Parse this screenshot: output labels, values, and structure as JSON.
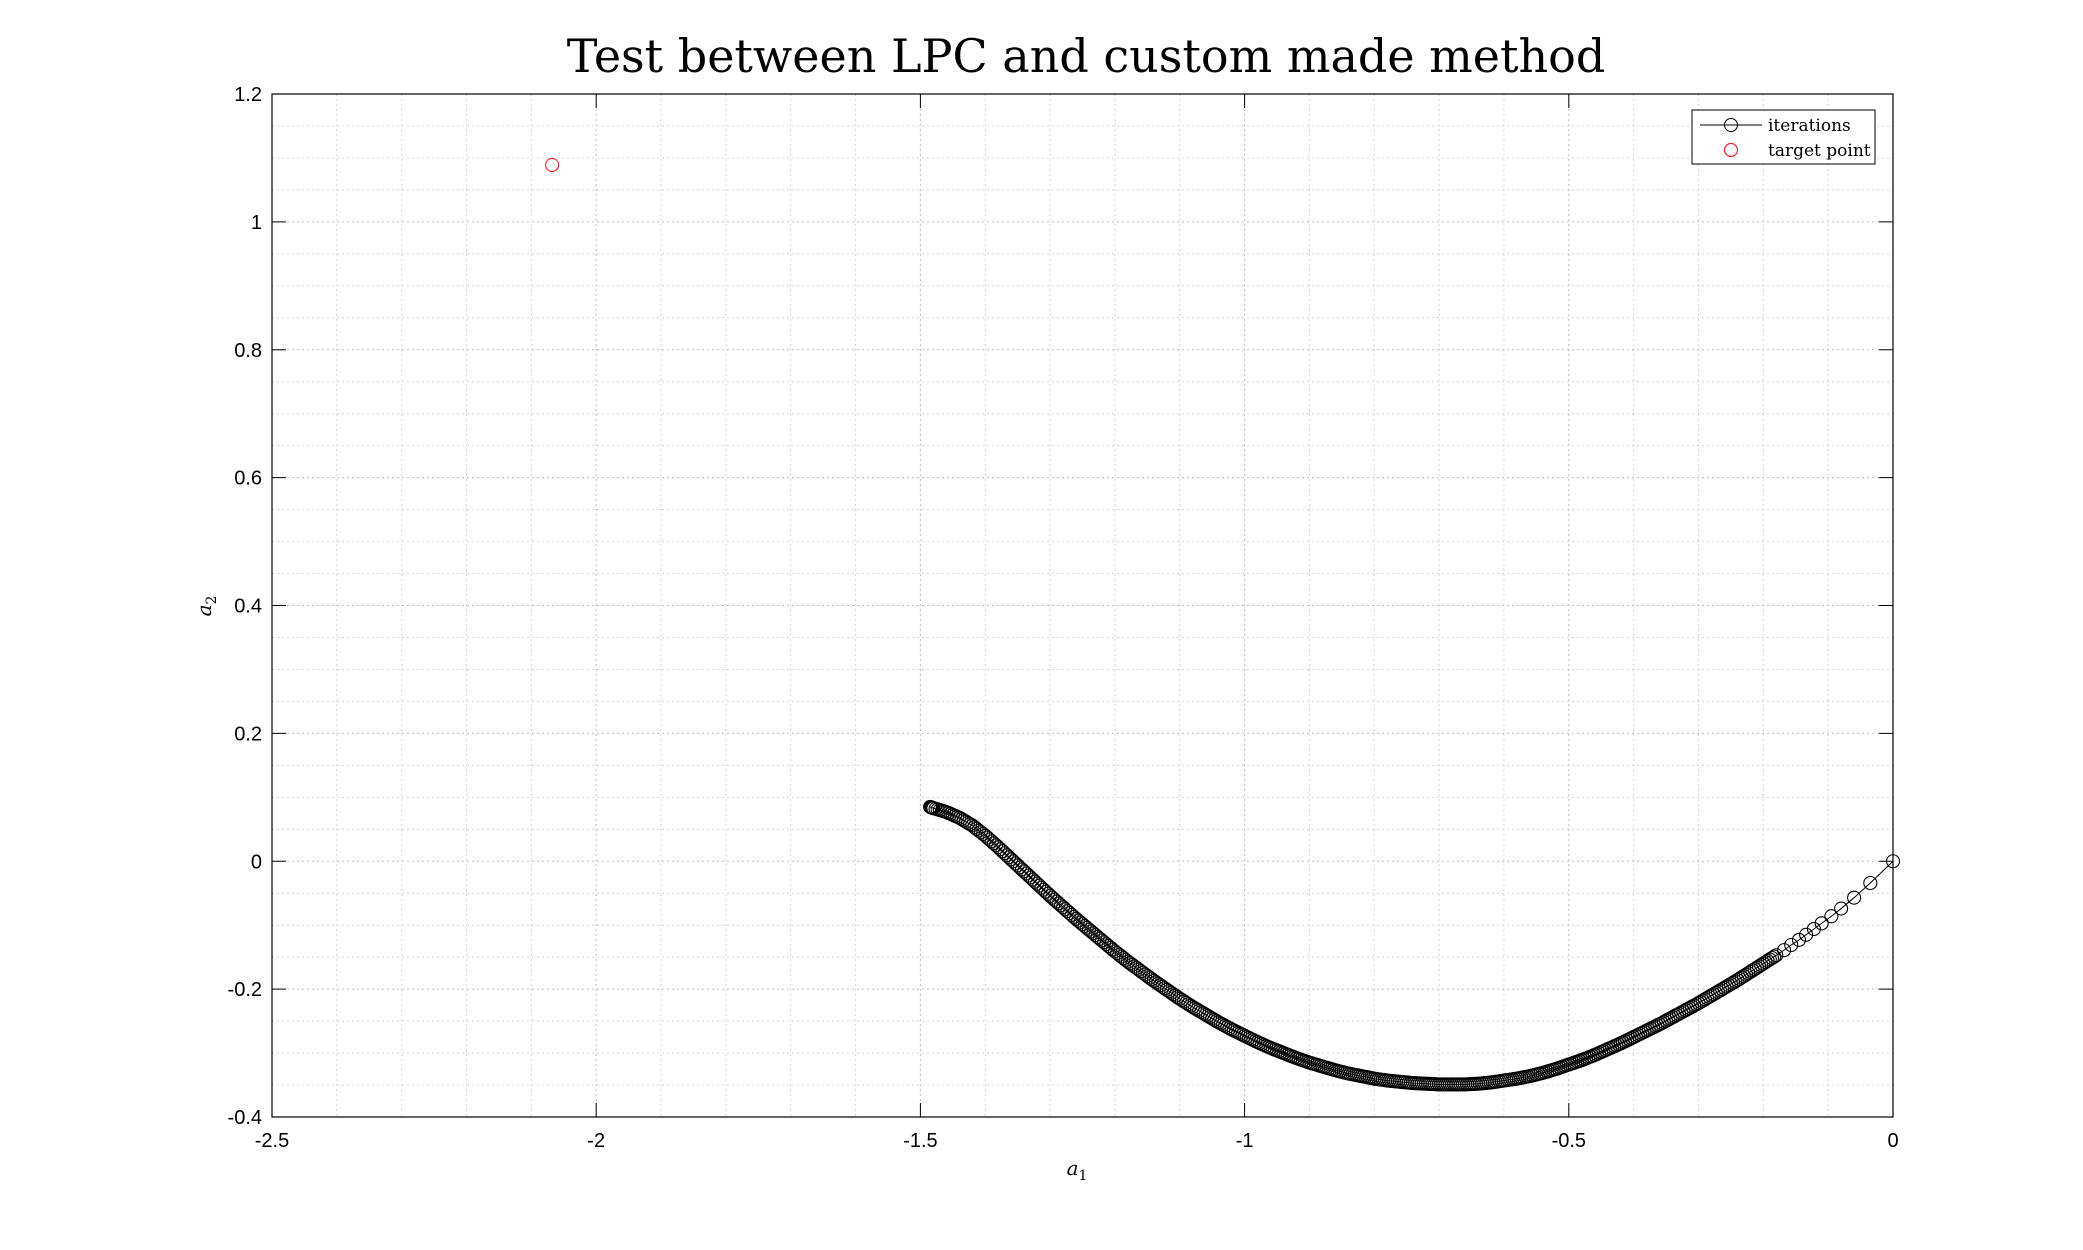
{
  "chart_data": {
    "type": "line",
    "title": "Test between LPC and custom made method",
    "xlabel": {
      "base": "a",
      "sub": "1"
    },
    "ylabel": {
      "base": "a",
      "sub": "2"
    },
    "xlim": [
      -2.5,
      0
    ],
    "ylim": [
      -0.4,
      1.2
    ],
    "xticks": [
      -2.5,
      -2,
      -1.5,
      -1,
      -0.5,
      0
    ],
    "xtick_labels": [
      "-2.5",
      "-2",
      "-1.5",
      "-1",
      "-0.5",
      "0"
    ],
    "yticks": [
      -0.4,
      -0.2,
      0,
      0.2,
      0.4,
      0.6,
      0.8,
      1,
      1.2
    ],
    "ytick_labels": [
      "-0.4",
      "-0.2",
      "0",
      "0.2",
      "0.4",
      "0.6",
      "0.8",
      "1",
      "1.2"
    ],
    "grid": true,
    "minor_grid": true,
    "legend_position": "top-right",
    "series": [
      {
        "name": "iterations",
        "marker": "circle",
        "line": true,
        "color": "#000000",
        "x": [
          0,
          -0.035,
          -0.06,
          -0.08,
          -0.095,
          -0.11,
          -0.122,
          -0.134,
          -0.145,
          -0.157,
          -0.168,
          -0.18,
          -0.2,
          -0.22,
          -0.24,
          -0.26,
          -0.28,
          -0.3,
          -0.32,
          -0.34,
          -0.36,
          -0.38,
          -0.4,
          -0.42,
          -0.44,
          -0.46,
          -0.48,
          -0.5,
          -0.52,
          -0.54,
          -0.56,
          -0.58,
          -0.6,
          -0.62,
          -0.64,
          -0.66,
          -0.68,
          -0.7,
          -0.72,
          -0.74,
          -0.76,
          -0.78,
          -0.8,
          -0.82,
          -0.84,
          -0.86,
          -0.88,
          -0.9,
          -0.92,
          -0.94,
          -0.96,
          -0.98,
          -1,
          -1.02,
          -1.04,
          -1.06,
          -1.08,
          -1.1,
          -1.12,
          -1.14,
          -1.16,
          -1.18,
          -1.2,
          -1.22,
          -1.24,
          -1.26,
          -1.28,
          -1.3,
          -1.32,
          -1.34,
          -1.36,
          -1.38,
          -1.4,
          -1.42,
          -1.44,
          -1.46,
          -1.48,
          -1.485
        ],
        "y": [
          0,
          -0.034,
          -0.057,
          -0.074,
          -0.086,
          -0.097,
          -0.106,
          -0.115,
          -0.123,
          -0.131,
          -0.139,
          -0.147,
          -0.16,
          -0.173,
          -0.186,
          -0.198,
          -0.21,
          -0.222,
          -0.233,
          -0.244,
          -0.255,
          -0.265,
          -0.275,
          -0.285,
          -0.294,
          -0.303,
          -0.311,
          -0.318,
          -0.325,
          -0.331,
          -0.336,
          -0.34,
          -0.343,
          -0.346,
          -0.348,
          -0.349,
          -0.349,
          -0.349,
          -0.348,
          -0.347,
          -0.345,
          -0.343,
          -0.34,
          -0.336,
          -0.332,
          -0.327,
          -0.321,
          -0.315,
          -0.308,
          -0.3,
          -0.292,
          -0.283,
          -0.273,
          -0.263,
          -0.252,
          -0.24,
          -0.228,
          -0.215,
          -0.201,
          -0.187,
          -0.172,
          -0.157,
          -0.141,
          -0.124,
          -0.107,
          -0.09,
          -0.072,
          -0.054,
          -0.035,
          -0.016,
          0.003,
          0.022,
          0.04,
          0.056,
          0.068,
          0.077,
          0.083,
          0.085
        ]
      },
      {
        "name": "target point",
        "marker": "circle",
        "line": false,
        "color": "#e8262b",
        "x": [
          -2.068
        ],
        "y": [
          1.089
        ]
      }
    ]
  }
}
